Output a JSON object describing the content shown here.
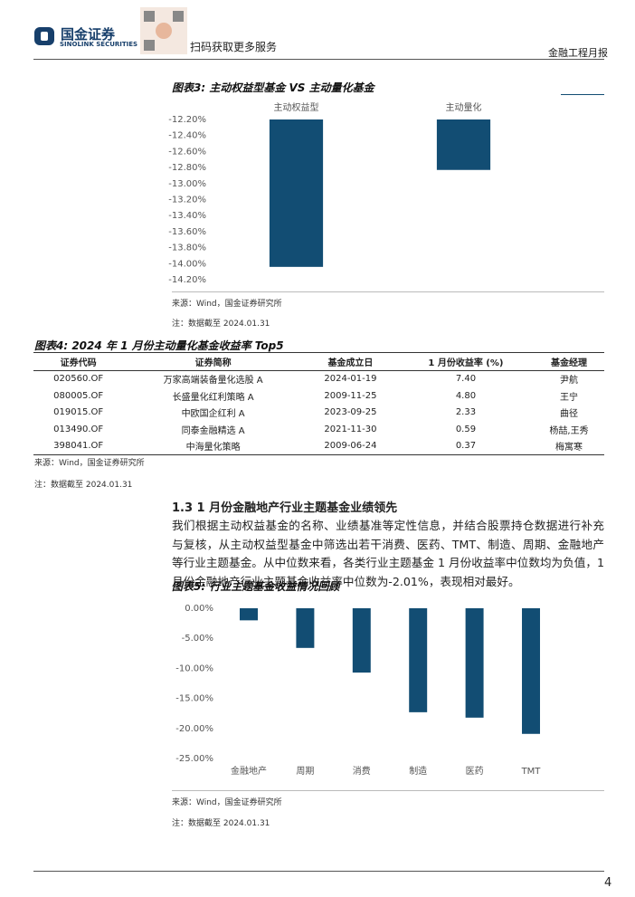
{
  "header": {
    "logo_cn": "国金证券",
    "logo_en": "SINOLINK SECURITIES",
    "qr_text": "扫码获取更多服务",
    "report_type": "金融工程月报"
  },
  "chart_data": [
    {
      "type": "bar",
      "title": "图表3: 主动权益型基金 VS 主动量化基金",
      "categories": [
        "主动权益型",
        "主动量化"
      ],
      "values": [
        -14.04,
        -12.83
      ],
      "color": "#124d73",
      "ylim": [
        -12.2,
        -14.2
      ],
      "yticks": [
        {
          "value": -12.2,
          "label": "-12.20%"
        },
        {
          "value": -12.4,
          "label": "-12.40%"
        },
        {
          "value": -12.6,
          "label": "-12.60%"
        },
        {
          "value": -12.8,
          "label": "-12.80%"
        },
        {
          "value": -13.0,
          "label": "-13.00%"
        },
        {
          "value": -13.2,
          "label": "-13.20%"
        },
        {
          "value": -13.4,
          "label": "-13.40%"
        },
        {
          "value": -13.6,
          "label": "-13.60%"
        },
        {
          "value": -13.8,
          "label": "-13.80%"
        },
        {
          "value": -14.0,
          "label": "-14.00%"
        },
        {
          "value": -14.2,
          "label": "-14.20%"
        }
      ],
      "xaxis_position": "top",
      "grid": false,
      "source": "来源：Wind，国金证券研究所",
      "note": "注：数据截至 2024.01.31"
    },
    {
      "type": "bar",
      "title": "图表5: 行业主题基金收益情况回顾",
      "categories": [
        "金融地产",
        "周期",
        "消费",
        "制造",
        "医药",
        "TMT"
      ],
      "values": [
        -2.01,
        -6.6,
        -10.7,
        -17.3,
        -18.2,
        -20.9
      ],
      "color": "#124d73",
      "ylim": [
        0,
        -25
      ],
      "yticks": [
        {
          "value": 0,
          "label": "0.00%"
        },
        {
          "value": -5,
          "label": "-5.00%"
        },
        {
          "value": -10,
          "label": "-10.00%"
        },
        {
          "value": -15,
          "label": "-15.00%"
        },
        {
          "value": -20,
          "label": "-20.00%"
        },
        {
          "value": -25,
          "label": "-25.00%"
        }
      ],
      "xaxis_position": "bottom",
      "grid": false,
      "source": "来源：Wind，国金证券研究所",
      "note": "注：数据截至 2024.01.31"
    }
  ],
  "table": {
    "title": "图表4: 2024 年 1 月份主动量化基金收益率 Top5",
    "columns": [
      "证券代码",
      "证券简称",
      "基金成立日",
      "1 月份收益率 (%)",
      "基金经理"
    ],
    "rows": [
      [
        "020560.OF",
        "万家高端装备量化选股 A",
        "2024-01-19",
        "7.40",
        "尹航"
      ],
      [
        "080005.OF",
        "长盛量化红利策略 A",
        "2009-11-25",
        "4.80",
        "王宁"
      ],
      [
        "019015.OF",
        "中欧国企红利 A",
        "2023-09-25",
        "2.33",
        "曲径"
      ],
      [
        "013490.OF",
        "同泰金融精选 A",
        "2021-11-30",
        "0.59",
        "杨喆,王秀"
      ],
      [
        "398041.OF",
        "中海量化策略",
        "2009-06-24",
        "0.37",
        "梅寓寒"
      ]
    ],
    "source": "来源：Wind，国金证券研究所",
    "note": "注：数据截至 2024.01.31"
  },
  "section": {
    "heading": "1.3 1 月份金融地产行业主题基金业绩领先",
    "paragraph": "我们根据主动权益基金的名称、业绩基准等定性信息，并结合股票持仓数据进行补充与复核，从主动权益型基金中筛选出若干消费、医药、TMT、制造、周期、金融地产等行业主题基金。从中位数来看，各类行业主题基金 1 月份收益率中位数均为负值，1 月份金融地产行业主题基金收益率中位数为-2.01%，表现相对最好。"
  },
  "footer": {
    "page": "4"
  }
}
